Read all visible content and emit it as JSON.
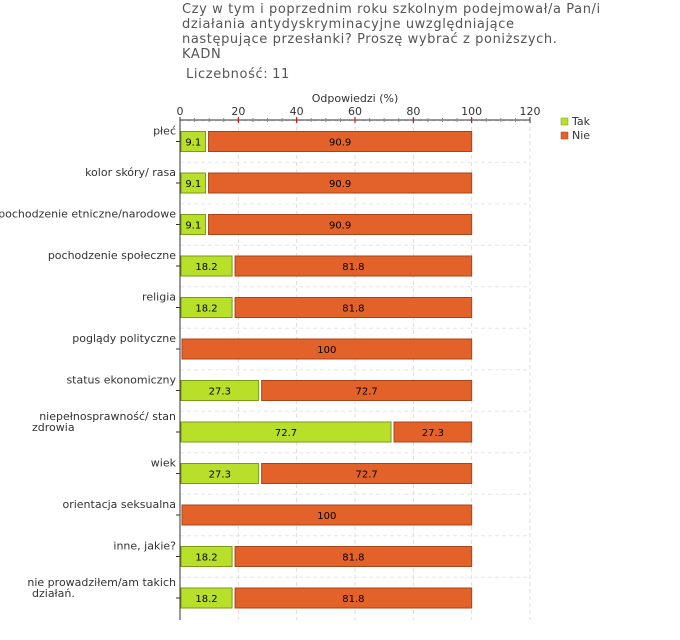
{
  "header": {
    "title_lines": [
      "Czy w tym i poprzednim roku szkolnym podejmował/a Pan/i",
      "działania antydyskryminacyjne uwzględniające",
      "następujące przesłanki? Proszę wybrać z poniższych.",
      "KADN"
    ],
    "count_label": "Liczebność:",
    "count_value": "11"
  },
  "chart_data": {
    "type": "bar",
    "orientation": "horizontal",
    "stacked": true,
    "title": "Czy w tym i poprzednim roku szkolnym podejmował/a Pan/i działania antydyskryminacyjne uwzględniające następujące przesłanki? Proszę wybrać z poniższych. KADN",
    "xlabel": "Odpowiedzi (%)",
    "ylabel": "",
    "xlim": [
      0,
      120
    ],
    "xticks": [
      0,
      20,
      40,
      60,
      80,
      100,
      120
    ],
    "grid": true,
    "legend_position": "top-right",
    "categories": [
      "płeć",
      "kolor skóry/ rasa",
      "pochodzenie etniczne/narodowe",
      "pochodzenie społeczne",
      "religia",
      "poglądy polityczne",
      "status ekonomiczny",
      "niepełnosprawność/ stan zdrowia",
      "wiek",
      "orientacja seksualna",
      "inne, jakie?",
      "nie prowadziłem/am takich działań."
    ],
    "category_lines": [
      [
        "płeć"
      ],
      [
        "kolor skóry/ rasa"
      ],
      [
        "pochodzenie etniczne/narodowe"
      ],
      [
        "pochodzenie społeczne"
      ],
      [
        "religia"
      ],
      [
        "poglądy polityczne"
      ],
      [
        "status ekonomiczny"
      ],
      [
        "niepełnosprawność/ stan",
        "zdrowia"
      ],
      [
        "wiek"
      ],
      [
        "orientacja seksualna"
      ],
      [
        "inne, jakie?"
      ],
      [
        "nie prowadziłem/am takich",
        "działań."
      ]
    ],
    "series": [
      {
        "name": "Tak",
        "color": "#b8e02a",
        "stroke": "#7a9a18",
        "values": [
          9.1,
          9.1,
          9.1,
          18.2,
          18.2,
          0,
          27.3,
          72.7,
          27.3,
          0,
          18.2,
          18.2
        ],
        "labels": [
          "9.1",
          "9.1",
          "9.1",
          "18.2",
          "18.2",
          "",
          "27.3",
          "72.7",
          "27.3",
          "",
          "18.2",
          "18.2"
        ]
      },
      {
        "name": "Nie",
        "color": "#e2622a",
        "stroke": "#a8441a",
        "values": [
          90.9,
          90.9,
          90.9,
          81.8,
          81.8,
          100,
          72.7,
          27.3,
          72.7,
          100,
          81.8,
          81.8
        ],
        "labels": [
          "90.9",
          "90.9",
          "90.9",
          "81.8",
          "81.8",
          "100",
          "72.7",
          "27.3",
          "72.7",
          "100",
          "81.8",
          "81.8"
        ]
      }
    ]
  }
}
